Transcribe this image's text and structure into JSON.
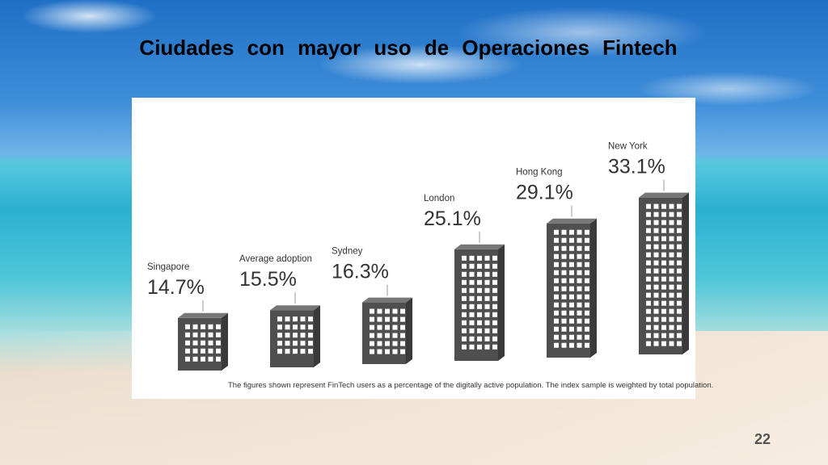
{
  "slide": {
    "title": "Ciudades con mayor uso de Operaciones Fintech",
    "page_number": "22"
  },
  "chart_data": {
    "type": "bar",
    "categories": [
      "Singapore",
      "Average adoption",
      "Sydney",
      "London",
      "Hong Kong",
      "New York"
    ],
    "values": [
      14.7,
      15.5,
      16.3,
      25.1,
      29.1,
      33.1
    ],
    "value_labels": [
      "14.7%",
      "15.5%",
      "16.3%",
      "25.1%",
      "29.1%",
      "33.1%"
    ],
    "unit": "%",
    "footnote": "The figures shown represent FinTech users as a percentage of the digitally active population. The index sample is weighted by total population.",
    "colors": {
      "building_front": "#4f4f4f",
      "building_side": "#3a3a3a",
      "building_top": "#777777",
      "window": "#ffffff",
      "text": "#333333"
    }
  }
}
